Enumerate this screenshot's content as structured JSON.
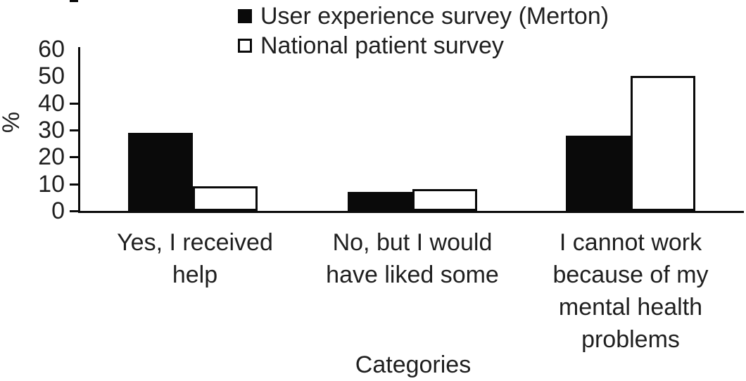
{
  "figure": {
    "background": "#ffffff",
    "line_color": "#0a0a0a",
    "text_color": "#1f1f1f"
  },
  "chart_data": {
    "type": "bar",
    "title": "",
    "xlabel": "Categories",
    "ylabel": "%",
    "ylim": [
      0,
      60
    ],
    "yticks": [
      0,
      10,
      20,
      30,
      40,
      50,
      60
    ],
    "grid": false,
    "legend_position": "top-center",
    "categories": [
      "Yes, I received help",
      "No, but I would have liked some",
      "I cannot work because of my mental health problems"
    ],
    "series": [
      {
        "name": "User experience survey (Merton)",
        "style": "filled",
        "fill": "#0a0a0a",
        "values": [
          29,
          7,
          28
        ]
      },
      {
        "name": "National patient survey",
        "style": "outline",
        "fill": "#ffffff",
        "values": [
          9,
          8,
          50
        ]
      }
    ]
  }
}
